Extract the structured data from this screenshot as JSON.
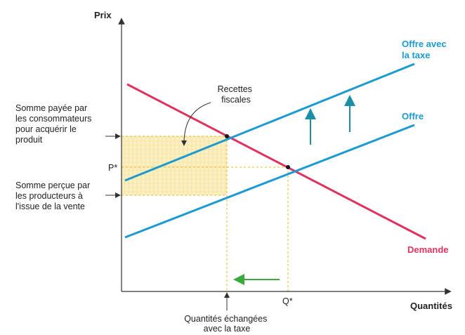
{
  "axes": {
    "y_title": "Prix",
    "x_title": "Quantités",
    "p_star": "P*",
    "q_star": "Q*"
  },
  "curves": {
    "supply_tax": [
      "Offre avec",
      "la taxe"
    ],
    "supply": "Offre",
    "demand": "Demande"
  },
  "annotations": {
    "tax_revenue": [
      "Recettes",
      "fiscales"
    ],
    "consumer_price": [
      "Somme payée par",
      "les consommateurs",
      "pour acquérir le",
      "produit"
    ],
    "producer_price": [
      "Somme perçue par",
      "les producteurs à",
      "l'issue de la vente"
    ],
    "quantity_with_tax": [
      "Quantités échangées",
      "avec la taxe"
    ]
  },
  "colors": {
    "supply": "#1b9bd1",
    "demand": "#e0325f",
    "revenue_fill": "#fcefc2",
    "guide": "#e8b923",
    "shift_arrow": "#1c8fa8",
    "quantity_arrow": "#3aa83a",
    "axis": "#333333"
  }
}
